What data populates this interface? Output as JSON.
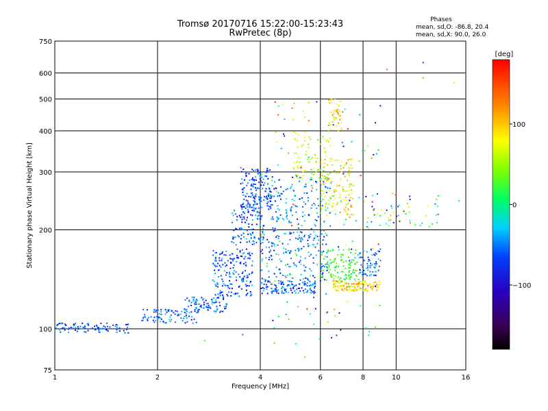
{
  "chart_data": {
    "type": "scatter",
    "title": {
      "line1": "Tromsø 20170716 15:22:00-15:23:43",
      "line2": "RwPretec (8p)"
    },
    "stats": {
      "heading": "Phases",
      "line1": "mean, sd,O: -86.8, 20.4",
      "line2": "mean, sd,X:  90.0, 26.0"
    },
    "xlabel": "Frequency [MHz]",
    "ylabel": "Stationary phase Virtual Height [km]",
    "x_scale": "log",
    "y_scale": "log",
    "xlim": [
      1,
      16
    ],
    "ylim": [
      75,
      750
    ],
    "x_ticks": [
      1,
      2,
      4,
      6,
      8,
      10,
      16
    ],
    "x_tick_labels": [
      "1",
      "2",
      "4",
      "6",
      "8",
      "10",
      "16"
    ],
    "y_ticks": [
      75,
      100,
      200,
      300,
      400,
      500,
      600,
      750
    ],
    "y_tick_labels": [
      "75",
      "100",
      "200",
      "300",
      "400",
      "500",
      "600",
      "750"
    ],
    "grid": "on",
    "colorbar": {
      "label": "[deg]",
      "ticks": [
        100,
        0,
        -100
      ],
      "tick_labels": [
        "100",
        "0",
        "−100"
      ],
      "range": [
        -180,
        180
      ],
      "colormap": "rainbow (black-violet-blue-cyan-green-yellow-orange-red)",
      "placement": "right"
    },
    "marker": "small dots",
    "clusters": [
      {
        "f_range": [
          1.0,
          1.65
        ],
        "h_range": [
          97,
          104
        ],
        "n": 90,
        "phase": -100
      },
      {
        "f_range": [
          1.8,
          2.6
        ],
        "h_range": [
          104,
          115
        ],
        "n": 80,
        "phase": -95
      },
      {
        "f_range": [
          2.4,
          3.2
        ],
        "h_range": [
          112,
          125
        ],
        "n": 90,
        "phase": -95
      },
      {
        "f_range": [
          2.9,
          3.8
        ],
        "h_range": [
          125,
          175
        ],
        "n": 180,
        "phase": -100
      },
      {
        "f_range": [
          3.3,
          4.1
        ],
        "h_range": [
          180,
          240
        ],
        "n": 110,
        "phase": -100
      },
      {
        "f_range": [
          3.5,
          4.3
        ],
        "h_range": [
          230,
          310
        ],
        "n": 160,
        "phase": -105
      },
      {
        "f_range": [
          4.0,
          5.8
        ],
        "h_range": [
          128,
          140
        ],
        "n": 130,
        "phase": -100
      },
      {
        "f_range": [
          4.0,
          6.3
        ],
        "h_range": [
          140,
          200
        ],
        "n": 180,
        "phase": -90
      },
      {
        "f_range": [
          4.3,
          6.6
        ],
        "h_range": [
          200,
          290
        ],
        "n": 140,
        "phase": -90
      },
      {
        "f_range": [
          5.0,
          6.5
        ],
        "h_range": [
          280,
          400
        ],
        "n": 90,
        "phase": 80
      },
      {
        "f_range": [
          6.0,
          7.5
        ],
        "h_range": [
          220,
          330
        ],
        "n": 120,
        "phase": 105
      },
      {
        "f_range": [
          6.5,
          9.0
        ],
        "h_range": [
          130,
          140
        ],
        "n": 130,
        "phase": 115
      },
      {
        "f_range": [
          6.0,
          7.8
        ],
        "h_range": [
          140,
          175
        ],
        "n": 100,
        "phase": 30
      },
      {
        "f_range": [
          6.3,
          7.0
        ],
        "h_range": [
          400,
          500
        ],
        "n": 40,
        "phase": 110
      },
      {
        "f_range": [
          7.8,
          9.0
        ],
        "h_range": [
          145,
          175
        ],
        "n": 60,
        "phase": -95
      },
      {
        "f_range": [
          8.0,
          13.5
        ],
        "h_range": [
          200,
          260
        ],
        "n": 60,
        "phase": 0
      },
      {
        "f_range": [
          4.0,
          9.0
        ],
        "h_range": [
          90,
          500
        ],
        "n": 160,
        "phase": 0
      }
    ],
    "outliers": [
      {
        "f": 9.4,
        "h": 615,
        "phase": 150
      },
      {
        "f": 12.0,
        "h": 645,
        "phase": -110
      },
      {
        "f": 12.0,
        "h": 580,
        "phase": 140
      },
      {
        "f": 14.8,
        "h": 560,
        "phase": 110
      },
      {
        "f": 15.3,
        "h": 245,
        "phase": -60
      },
      {
        "f": 2.75,
        "h": 92,
        "phase": 40
      },
      {
        "f": 3.55,
        "h": 96,
        "phase": -90
      },
      {
        "f": 5.4,
        "h": 82,
        "phase": 130
      },
      {
        "f": 11.0,
        "h": 210,
        "phase": 140
      }
    ]
  }
}
